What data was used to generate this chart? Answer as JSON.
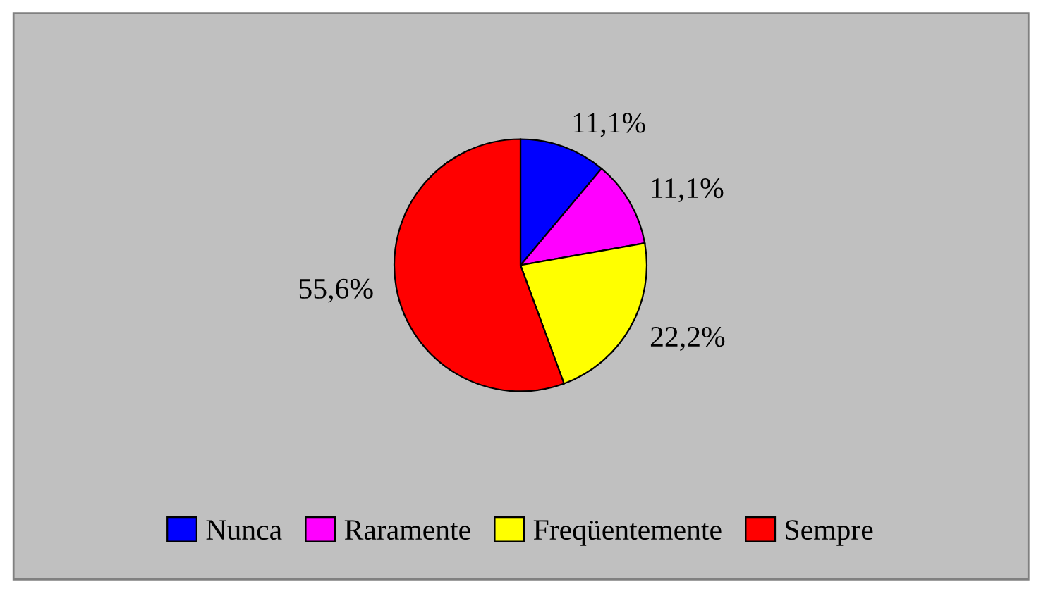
{
  "chart_data": {
    "type": "pie",
    "categories": [
      "Nunca",
      "Raramente",
      "Freqüentemente",
      "Sempre"
    ],
    "values": [
      11.1,
      11.1,
      22.2,
      55.6
    ],
    "value_labels": [
      "11,1%",
      "11,1%",
      "22,2%",
      "55,6%"
    ],
    "colors": [
      "#0000ff",
      "#ff00ff",
      "#ffff00",
      "#ff0000"
    ],
    "legend": "bottom"
  }
}
